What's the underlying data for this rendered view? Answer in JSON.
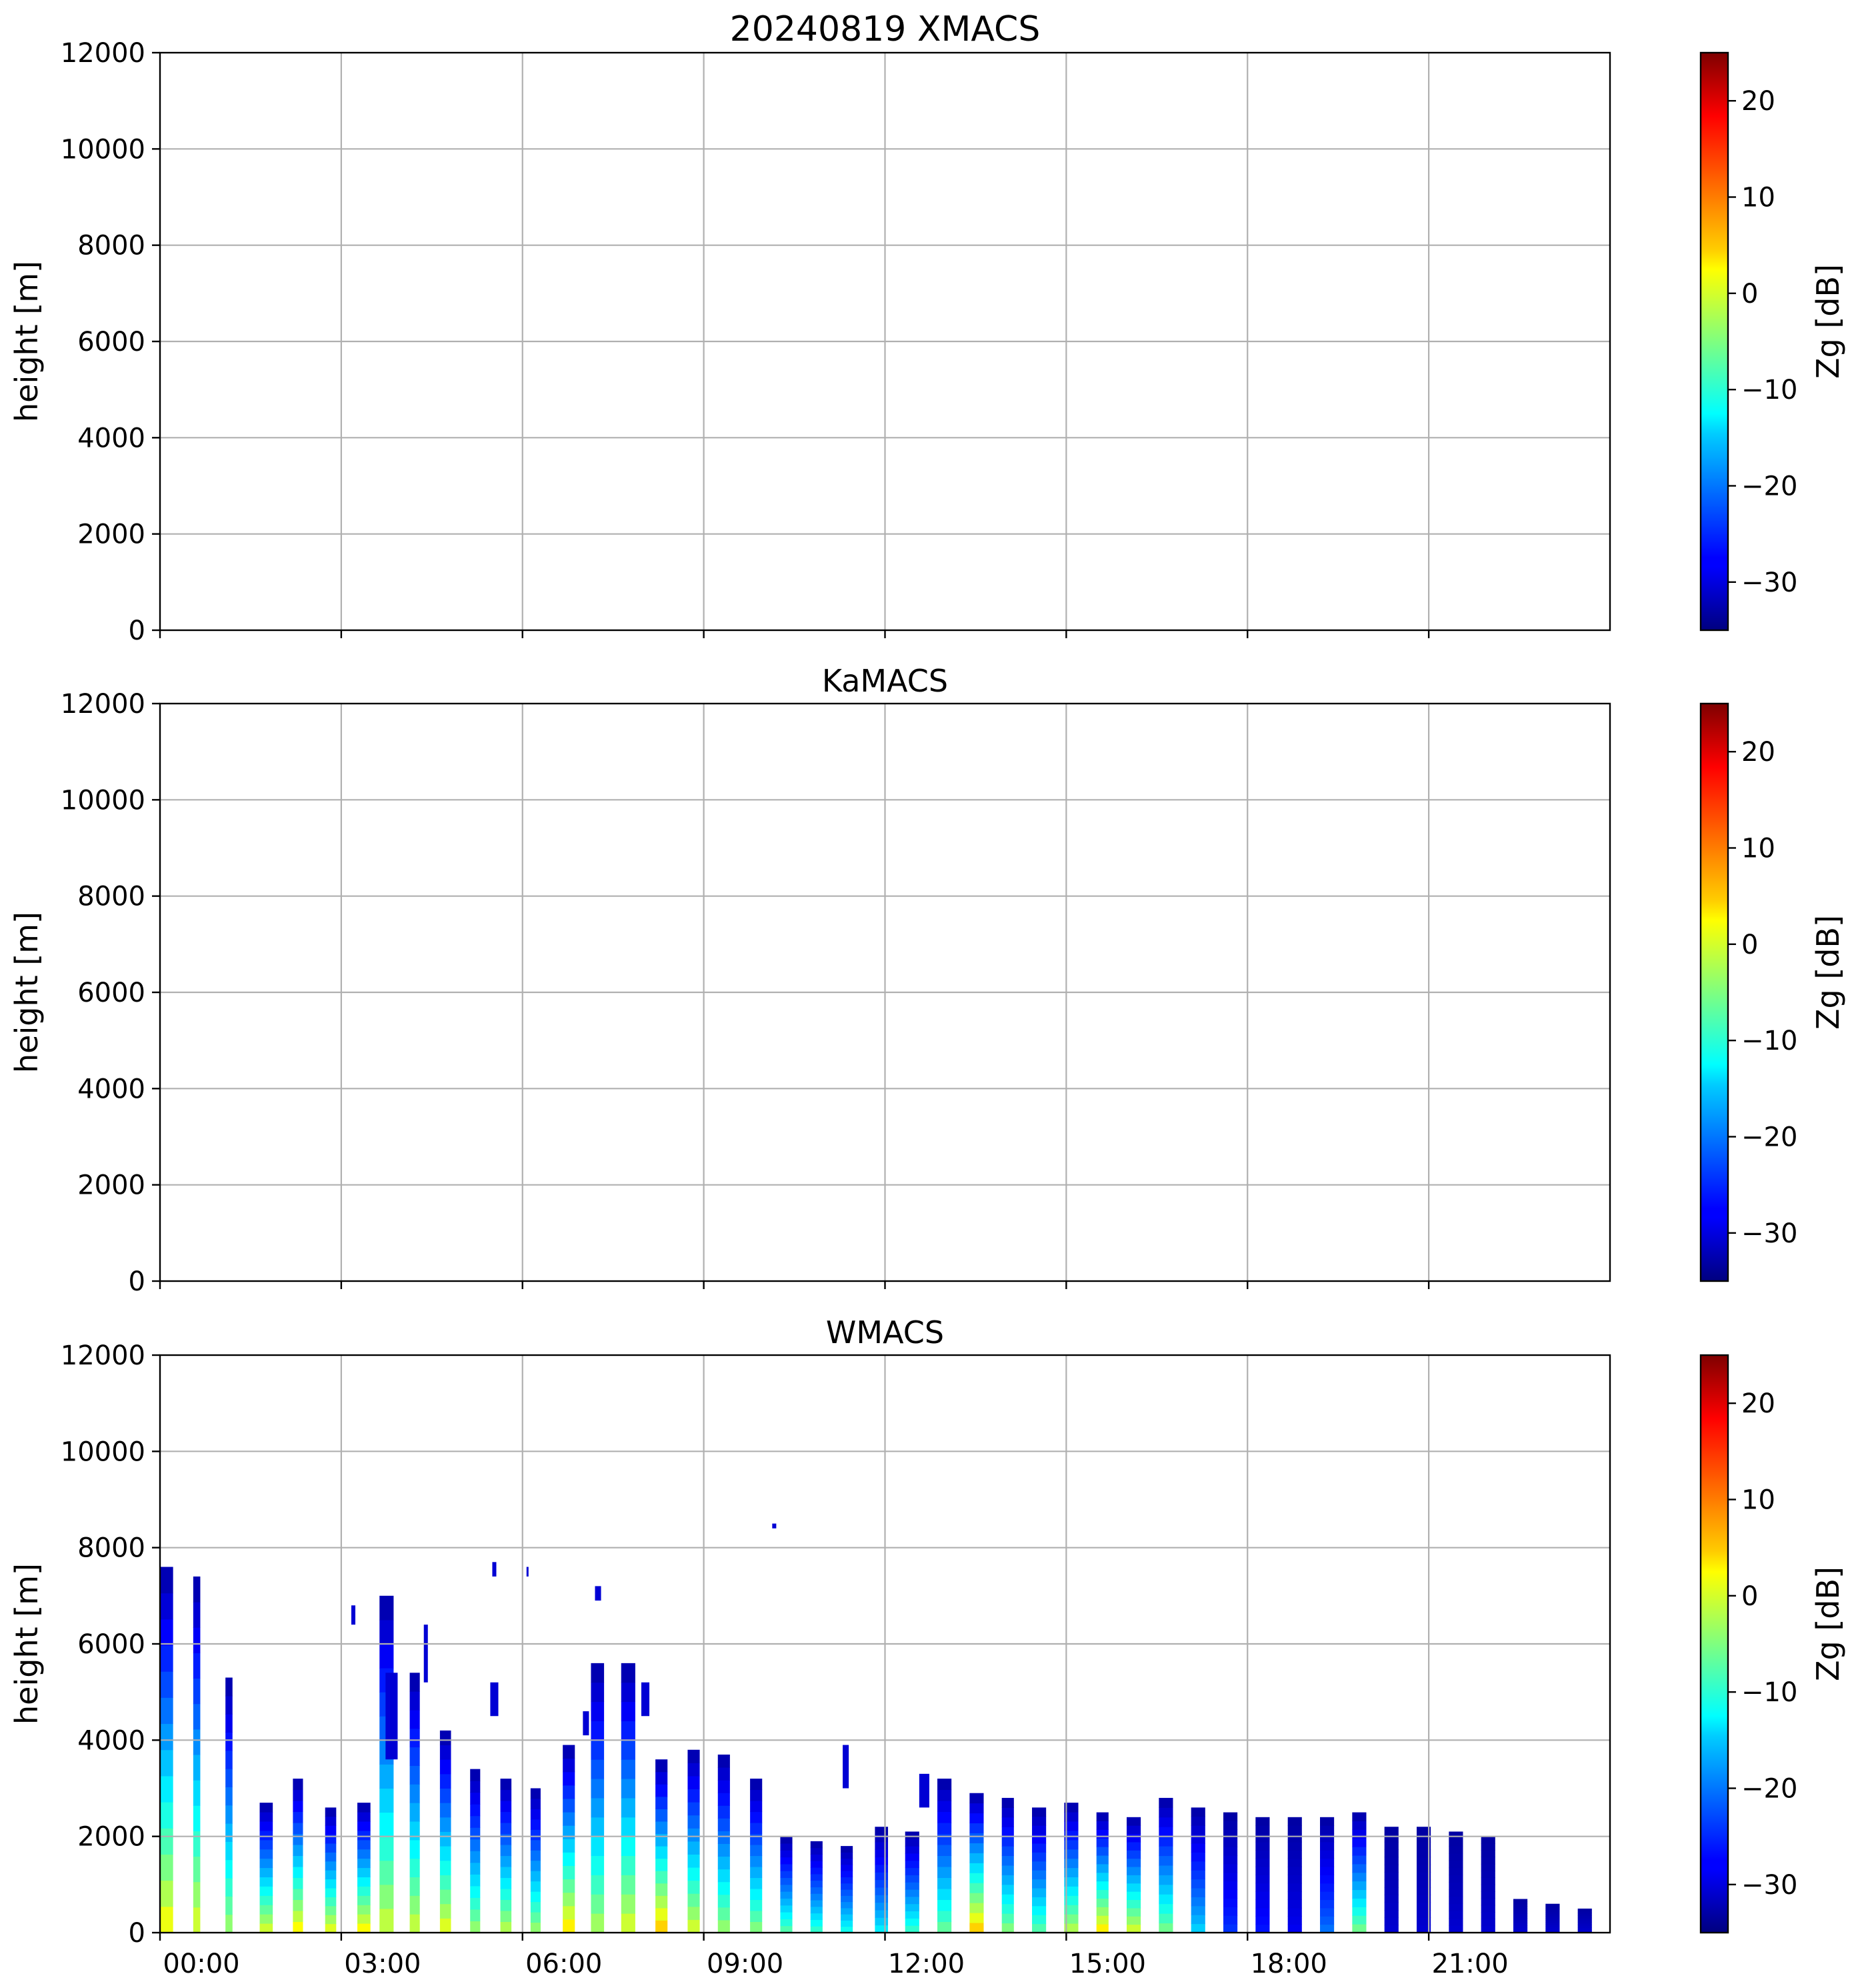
{
  "chart_data": [
    {
      "type": "heatmap",
      "title": "20240819 XMACS",
      "ylabel": "height [m]",
      "ylim": [
        0,
        12000
      ],
      "yticks": [
        "0",
        "2000",
        "4000",
        "6000",
        "8000",
        "10000",
        "12000"
      ],
      "xlim": [
        "00:00",
        "24:00"
      ],
      "xticks": [],
      "grid": true,
      "colorbar": {
        "label": "Zg [dB]",
        "range": [
          -35,
          25
        ],
        "ticks": [
          "20",
          "10",
          "0",
          "−10",
          "−20",
          "−30"
        ]
      },
      "columns": []
    },
    {
      "type": "heatmap",
      "title": "KaMACS",
      "ylabel": "height [m]",
      "ylim": [
        0,
        12000
      ],
      "yticks": [
        "0",
        "2000",
        "4000",
        "6000",
        "8000",
        "10000",
        "12000"
      ],
      "xlim": [
        "00:00",
        "24:00"
      ],
      "xticks": [],
      "grid": true,
      "colorbar": {
        "label": "Zg [dB]",
        "range": [
          -35,
          25
        ],
        "ticks": [
          "20",
          "10",
          "0",
          "−10",
          "−20",
          "−30"
        ]
      },
      "columns": []
    },
    {
      "type": "heatmap",
      "title": "WMACS",
      "ylabel": "height [m]",
      "ylim": [
        0,
        12000
      ],
      "yticks": [
        "0",
        "2000",
        "4000",
        "6000",
        "8000",
        "10000",
        "12000"
      ],
      "xlim": [
        "00:00",
        "24:00"
      ],
      "xticks": [
        "00:00",
        "03:00",
        "06:00",
        "09:00",
        "12:00",
        "15:00",
        "18:00",
        "21:00"
      ],
      "grid": true,
      "colorbar": {
        "label": "Zg [dB]",
        "range": [
          -35,
          25
        ],
        "ticks": [
          "20",
          "10",
          "0",
          "−10",
          "−20",
          "−30"
        ]
      },
      "columns": [
        {
          "start": "00:00",
          "end": "00:13",
          "top": 7600,
          "z_ground": 4
        },
        {
          "start": "00:33",
          "end": "00:40",
          "top": 7400,
          "z_ground": 2
        },
        {
          "start": "01:05",
          "end": "01:12",
          "top": 5300,
          "z_ground": -2
        },
        {
          "start": "01:39",
          "end": "01:52",
          "top": 2700,
          "z_ground": 2
        },
        {
          "start": "02:12",
          "end": "02:22",
          "top": 3200,
          "z_ground": 5
        },
        {
          "start": "02:44",
          "end": "02:55",
          "top": 2600,
          "z_ground": 3
        },
        {
          "start": "03:16",
          "end": "03:29",
          "top": 2700,
          "z_ground": 5
        },
        {
          "start": "03:38",
          "end": "03:52",
          "top": 7000,
          "z_ground": 1
        },
        {
          "start": "04:08",
          "end": "04:18",
          "top": 5400,
          "z_ground": 1
        },
        {
          "start": "04:38",
          "end": "04:49",
          "top": 4200,
          "z_ground": 3
        },
        {
          "start": "05:08",
          "end": "05:18",
          "top": 3400,
          "z_ground": -2
        },
        {
          "start": "05:38",
          "end": "05:49",
          "top": 3200,
          "z_ground": 0
        },
        {
          "start": "06:08",
          "end": "06:18",
          "top": 3000,
          "z_ground": -2
        },
        {
          "start": "06:40",
          "end": "06:52",
          "top": 3900,
          "z_ground": 6
        },
        {
          "start": "07:08",
          "end": "07:21",
          "top": 5600,
          "z_ground": -1
        },
        {
          "start": "07:38",
          "end": "07:52",
          "top": 5600,
          "z_ground": 2
        },
        {
          "start": "08:12",
          "end": "08:24",
          "top": 3600,
          "z_ground": 8
        },
        {
          "start": "08:44",
          "end": "08:56",
          "top": 3800,
          "z_ground": 2
        },
        {
          "start": "09:14",
          "end": "09:26",
          "top": 3700,
          "z_ground": -2
        },
        {
          "start": "09:46",
          "end": "09:58",
          "top": 3200,
          "z_ground": -3
        },
        {
          "start": "10:16",
          "end": "10:28",
          "top": 2000,
          "z_ground": -6
        },
        {
          "start": "10:46",
          "end": "10:58",
          "top": 1900,
          "z_ground": -8
        },
        {
          "start": "11:16",
          "end": "11:28",
          "top": 1800,
          "z_ground": -10
        },
        {
          "start": "11:50",
          "end": "12:03",
          "top": 2200,
          "z_ground": -12
        },
        {
          "start": "12:20",
          "end": "12:34",
          "top": 2100,
          "z_ground": -8
        },
        {
          "start": "12:52",
          "end": "13:06",
          "top": 3200,
          "z_ground": -5
        },
        {
          "start": "13:24",
          "end": "13:38",
          "top": 2900,
          "z_ground": 8
        },
        {
          "start": "13:56",
          "end": "14:08",
          "top": 2800,
          "z_ground": -3
        },
        {
          "start": "14:26",
          "end": "14:40",
          "top": 2600,
          "z_ground": -6
        },
        {
          "start": "14:58",
          "end": "15:12",
          "top": 2700,
          "z_ground": 0
        },
        {
          "start": "15:30",
          "end": "15:42",
          "top": 2500,
          "z_ground": 6
        },
        {
          "start": "16:00",
          "end": "16:14",
          "top": 2400,
          "z_ground": 2
        },
        {
          "start": "16:32",
          "end": "16:46",
          "top": 2800,
          "z_ground": -4
        },
        {
          "start": "17:04",
          "end": "17:18",
          "top": 2600,
          "z_ground": -14
        },
        {
          "start": "17:36",
          "end": "17:50",
          "top": 2500,
          "z_ground": -24
        },
        {
          "start": "18:08",
          "end": "18:22",
          "top": 2400,
          "z_ground": -26
        },
        {
          "start": "18:40",
          "end": "18:54",
          "top": 2400,
          "z_ground": -28
        },
        {
          "start": "19:12",
          "end": "19:26",
          "top": 2400,
          "z_ground": -20
        },
        {
          "start": "19:44",
          "end": "19:58",
          "top": 2500,
          "z_ground": -4
        },
        {
          "start": "20:16",
          "end": "20:30",
          "top": 2200,
          "z_ground": -30
        },
        {
          "start": "20:48",
          "end": "21:02",
          "top": 2200,
          "z_ground": -30
        },
        {
          "start": "21:20",
          "end": "21:34",
          "top": 2100,
          "z_ground": -30
        },
        {
          "start": "21:52",
          "end": "22:06",
          "top": 2000,
          "z_ground": -30
        },
        {
          "start": "22:24",
          "end": "22:38",
          "top": 700,
          "z_ground": -30
        },
        {
          "start": "22:56",
          "end": "23:10",
          "top": 600,
          "z_ground": -30
        },
        {
          "start": "23:28",
          "end": "23:42",
          "top": 500,
          "z_ground": -30
        }
      ],
      "patches": [
        {
          "start": "03:10",
          "end": "03:14",
          "bottom": 6400,
          "top": 6800
        },
        {
          "start": "03:44",
          "end": "03:56",
          "bottom": 3600,
          "top": 5400
        },
        {
          "start": "04:22",
          "end": "04:26",
          "bottom": 5200,
          "top": 6400
        },
        {
          "start": "05:28",
          "end": "05:36",
          "bottom": 4500,
          "top": 5200
        },
        {
          "start": "05:30",
          "end": "05:34",
          "bottom": 7400,
          "top": 7700
        },
        {
          "start": "06:04",
          "end": "06:06",
          "bottom": 7400,
          "top": 7600
        },
        {
          "start": "07:00",
          "end": "07:06",
          "bottom": 4100,
          "top": 4600
        },
        {
          "start": "07:12",
          "end": "07:18",
          "bottom": 6900,
          "top": 7200
        },
        {
          "start": "07:58",
          "end": "08:06",
          "bottom": 4500,
          "top": 5200
        },
        {
          "start": "10:08",
          "end": "10:12",
          "bottom": 8400,
          "top": 8500
        },
        {
          "start": "11:18",
          "end": "11:24",
          "bottom": 3000,
          "top": 3900
        },
        {
          "start": "12:34",
          "end": "12:44",
          "bottom": 2600,
          "top": 3300
        }
      ]
    }
  ]
}
